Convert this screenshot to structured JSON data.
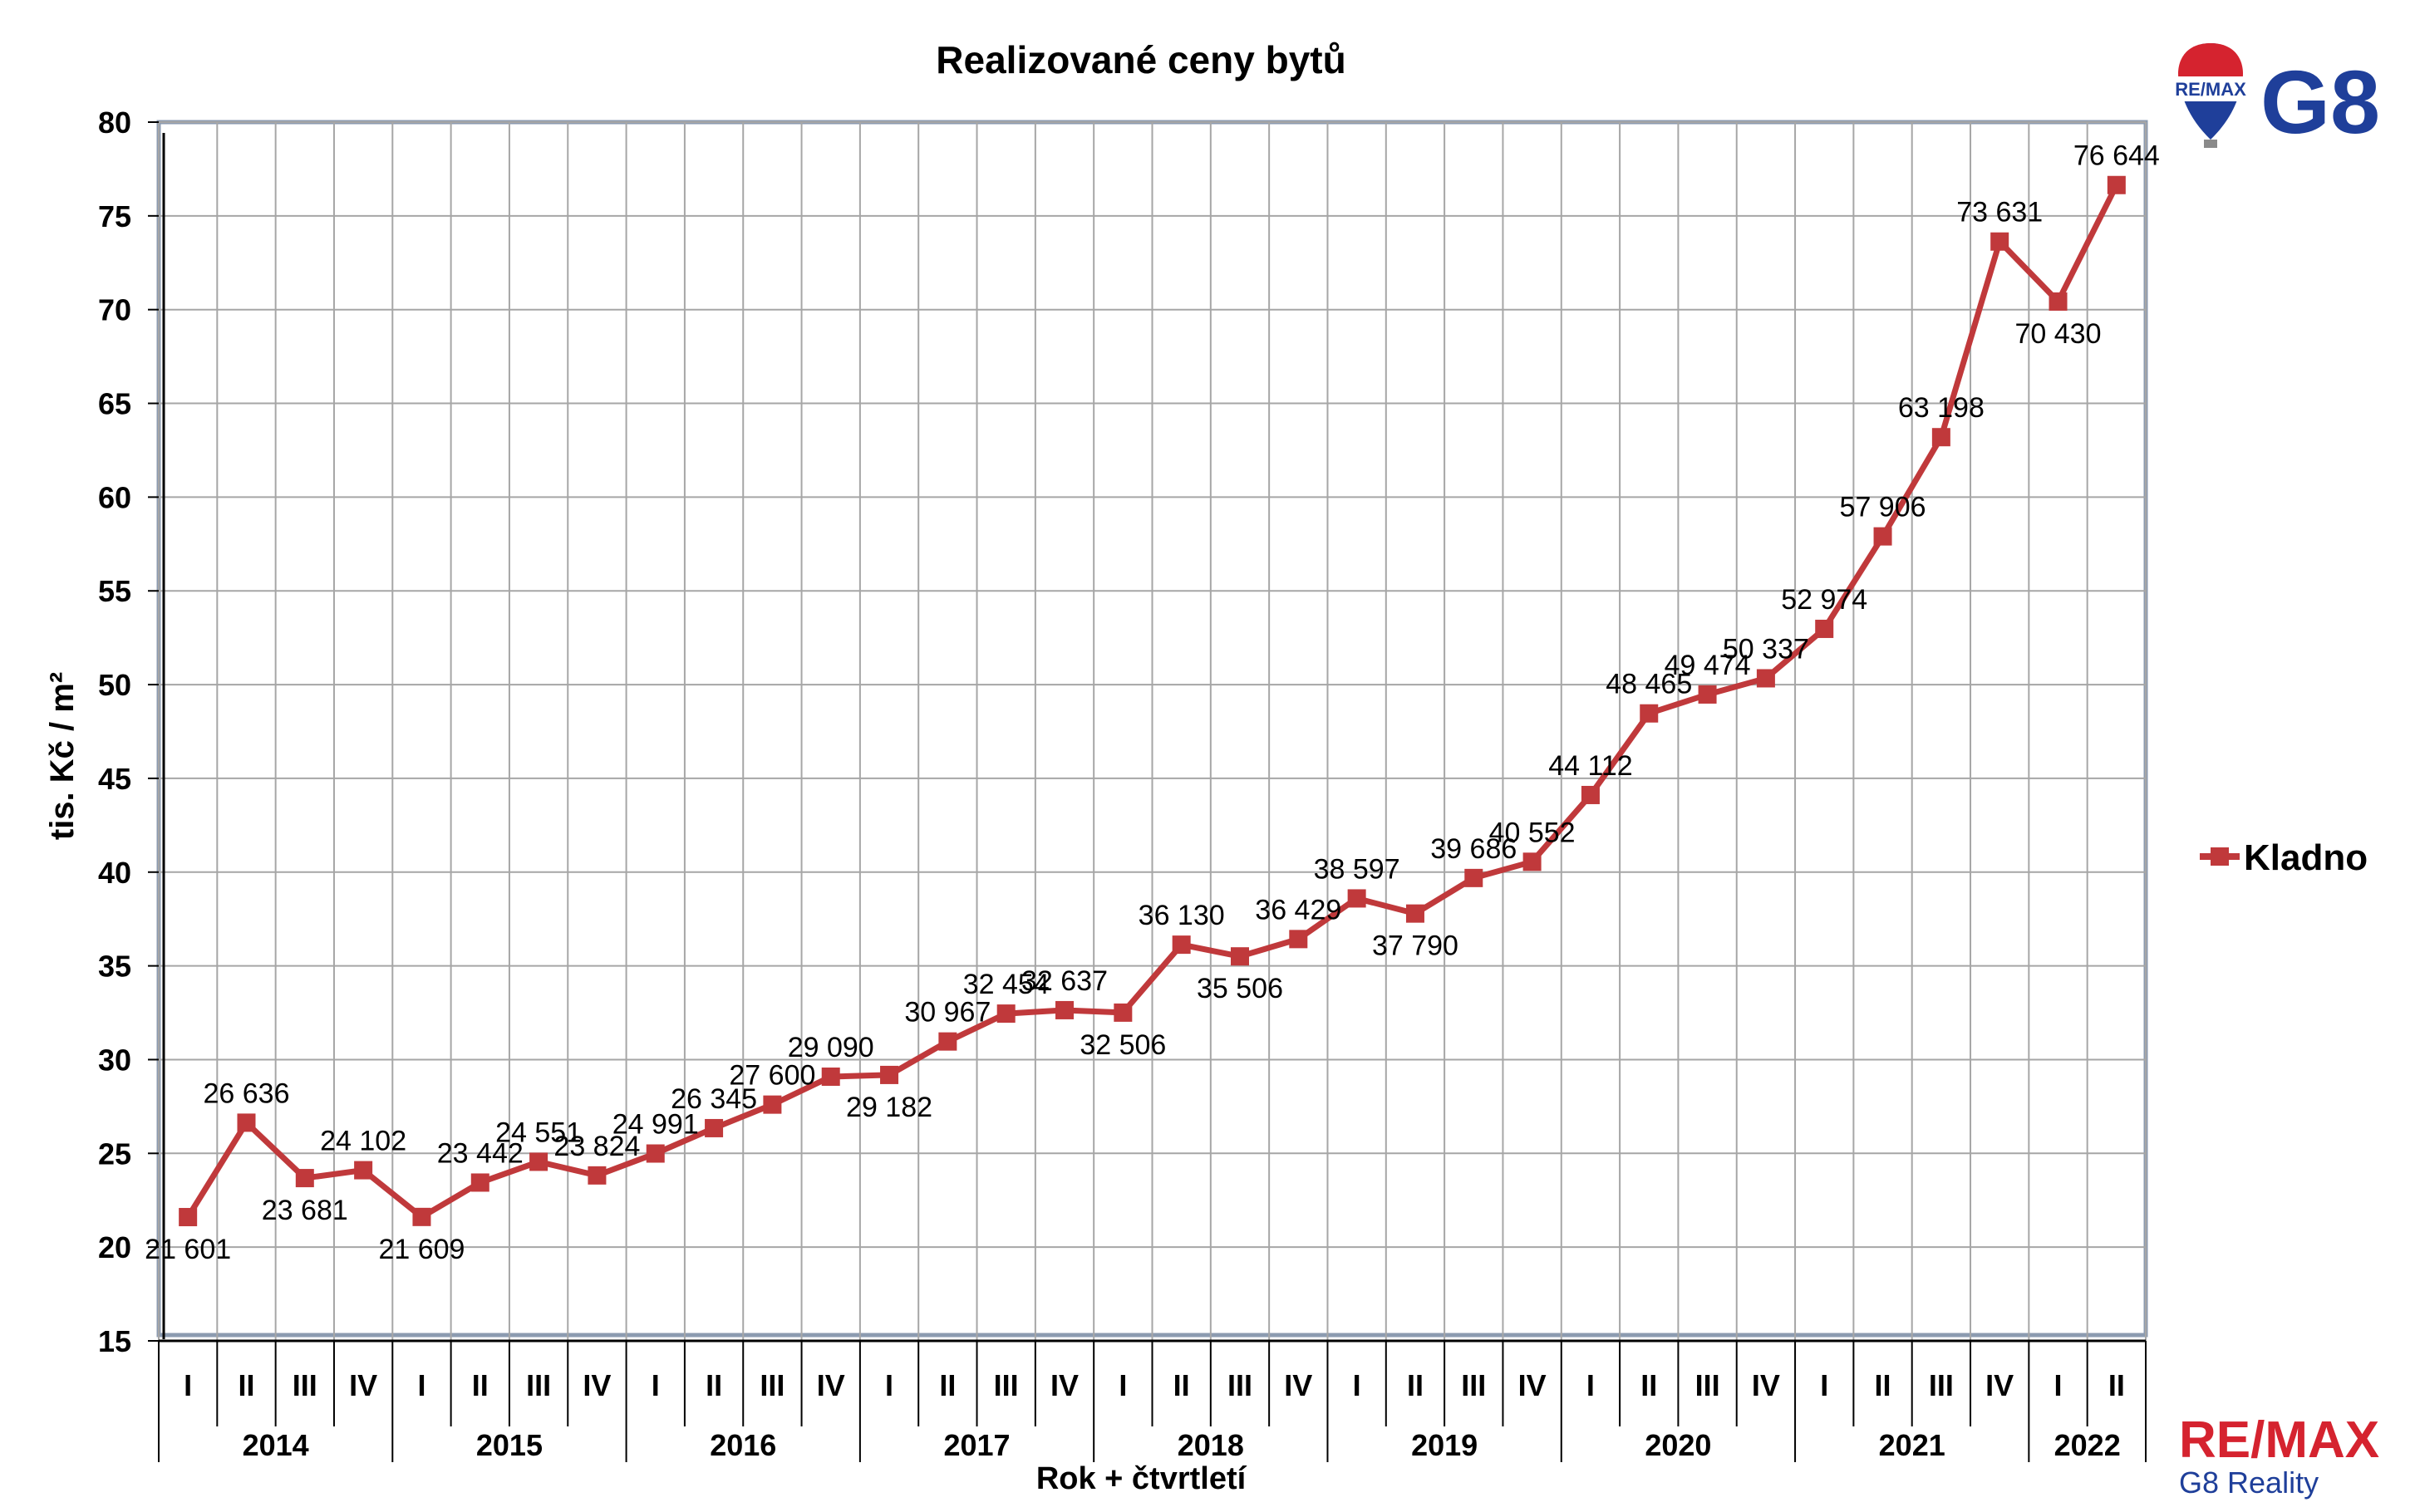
{
  "colors": {
    "series": "#c0393b",
    "marker": "#c0393b",
    "grid": "#a6a6a6",
    "frame": "#8c9bb0",
    "brand_red": "#d5232f",
    "brand_blue": "#1f3f9a"
  },
  "logos": {
    "top_right": {
      "balloon_text": "RE/MAX",
      "g8_text": "G8"
    },
    "bottom_right": {
      "brand": "RE/MAX",
      "subtitle": "G8 Reality"
    }
  },
  "chart_data": {
    "type": "line",
    "title": "Realizované ceny bytů",
    "xlabel": "Rok + čtvrtletí",
    "ylabel": "tis. Kč / m²",
    "ylim": [
      15,
      80
    ],
    "y_ticks": [
      "15",
      "20",
      "25",
      "30",
      "35",
      "40",
      "45",
      "50",
      "55",
      "60",
      "65",
      "70",
      "75",
      "80"
    ],
    "grid": true,
    "legend_position": "right",
    "quarter_labels": [
      "I",
      "II",
      "III",
      "IV",
      "I",
      "II",
      "III",
      "IV",
      "I",
      "II",
      "III",
      "IV",
      "I",
      "II",
      "III",
      "IV",
      "I",
      "II",
      "III",
      "IV",
      "I",
      "II",
      "III",
      "IV",
      "I",
      "II",
      "III",
      "IV",
      "I",
      "II",
      "III",
      "IV",
      "I",
      "II"
    ],
    "years": [
      {
        "label": "2014",
        "quarters": 4
      },
      {
        "label": "2015",
        "quarters": 4
      },
      {
        "label": "2016",
        "quarters": 4
      },
      {
        "label": "2017",
        "quarters": 4
      },
      {
        "label": "2018",
        "quarters": 4
      },
      {
        "label": "2019",
        "quarters": 4
      },
      {
        "label": "2020",
        "quarters": 4
      },
      {
        "label": "2021",
        "quarters": 4
      },
      {
        "label": "2022",
        "quarters": 2
      }
    ],
    "series": [
      {
        "name": "Kladno",
        "values": [
          21.601,
          26.636,
          23.681,
          24.102,
          21.609,
          23.442,
          24.551,
          23.824,
          24.991,
          26.345,
          27.6,
          29.09,
          29.182,
          30.967,
          32.454,
          32.637,
          32.506,
          36.13,
          35.506,
          36.429,
          38.597,
          37.79,
          39.686,
          40.552,
          44.112,
          48.465,
          49.474,
          50.337,
          52.974,
          57.906,
          63.198,
          73.631,
          70.43,
          76.644
        ],
        "labels": [
          "21 601",
          "26 636",
          "23 681",
          "24 102",
          "21 609",
          "23 442",
          "24 551",
          "23 824",
          "24 991",
          "26 345",
          "27 600",
          "29 090",
          "29 182",
          "30 967",
          "32 454",
          "32 637",
          "32 506",
          "36 130",
          "35 506",
          "36 429",
          "38 597",
          "37 790",
          "39 686",
          "40 552",
          "44 112",
          "48 465",
          "49 474",
          "50 337",
          "52 974",
          "57 906",
          "63 198",
          "73 631",
          "70 430",
          "76 644"
        ]
      }
    ]
  }
}
